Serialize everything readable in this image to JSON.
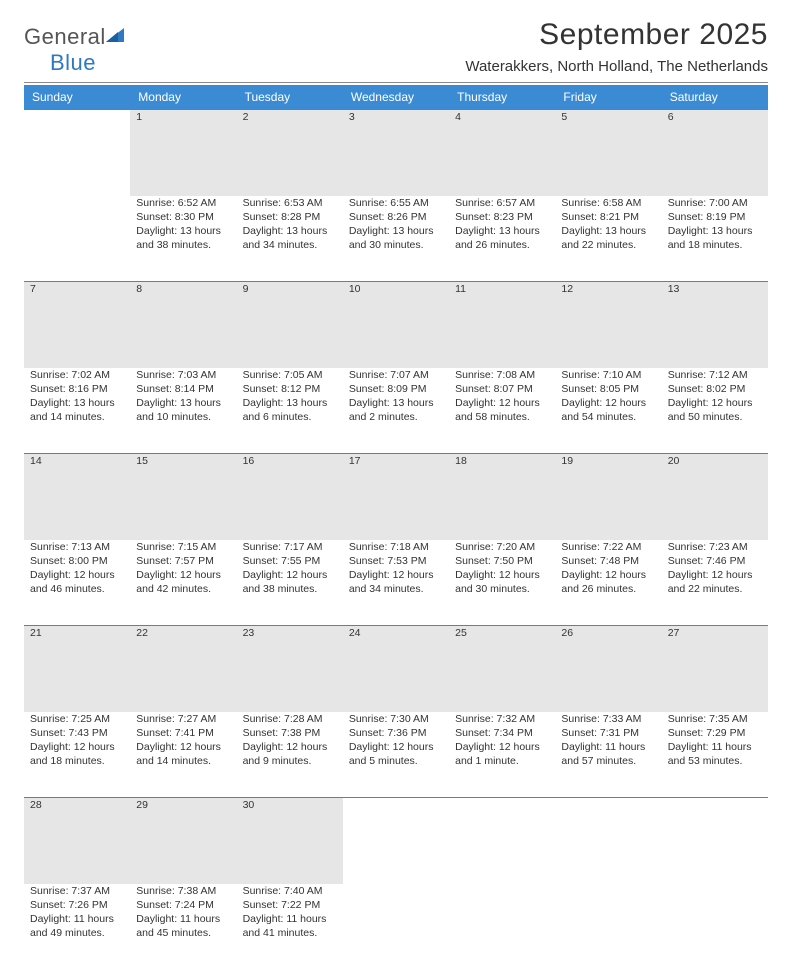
{
  "brand": {
    "word1": "General",
    "word2": "Blue",
    "word1_color": "#555555",
    "word2_color": "#2f78c4"
  },
  "title": "September 2025",
  "location": "Waterakkers, North Holland, The Netherlands",
  "header_bg": "#3b8bd4",
  "daynum_bg": "#e6e6e6",
  "border_color": "#7a7a7a",
  "text_color": "#333333",
  "weekdays": [
    "Sunday",
    "Monday",
    "Tuesday",
    "Wednesday",
    "Thursday",
    "Friday",
    "Saturday"
  ],
  "weeks": [
    [
      null,
      {
        "n": "1",
        "sr": "6:52 AM",
        "ss": "8:30 PM",
        "dl": "13 hours and 38 minutes."
      },
      {
        "n": "2",
        "sr": "6:53 AM",
        "ss": "8:28 PM",
        "dl": "13 hours and 34 minutes."
      },
      {
        "n": "3",
        "sr": "6:55 AM",
        "ss": "8:26 PM",
        "dl": "13 hours and 30 minutes."
      },
      {
        "n": "4",
        "sr": "6:57 AM",
        "ss": "8:23 PM",
        "dl": "13 hours and 26 minutes."
      },
      {
        "n": "5",
        "sr": "6:58 AM",
        "ss": "8:21 PM",
        "dl": "13 hours and 22 minutes."
      },
      {
        "n": "6",
        "sr": "7:00 AM",
        "ss": "8:19 PM",
        "dl": "13 hours and 18 minutes."
      }
    ],
    [
      {
        "n": "7",
        "sr": "7:02 AM",
        "ss": "8:16 PM",
        "dl": "13 hours and 14 minutes."
      },
      {
        "n": "8",
        "sr": "7:03 AM",
        "ss": "8:14 PM",
        "dl": "13 hours and 10 minutes."
      },
      {
        "n": "9",
        "sr": "7:05 AM",
        "ss": "8:12 PM",
        "dl": "13 hours and 6 minutes."
      },
      {
        "n": "10",
        "sr": "7:07 AM",
        "ss": "8:09 PM",
        "dl": "13 hours and 2 minutes."
      },
      {
        "n": "11",
        "sr": "7:08 AM",
        "ss": "8:07 PM",
        "dl": "12 hours and 58 minutes."
      },
      {
        "n": "12",
        "sr": "7:10 AM",
        "ss": "8:05 PM",
        "dl": "12 hours and 54 minutes."
      },
      {
        "n": "13",
        "sr": "7:12 AM",
        "ss": "8:02 PM",
        "dl": "12 hours and 50 minutes."
      }
    ],
    [
      {
        "n": "14",
        "sr": "7:13 AM",
        "ss": "8:00 PM",
        "dl": "12 hours and 46 minutes."
      },
      {
        "n": "15",
        "sr": "7:15 AM",
        "ss": "7:57 PM",
        "dl": "12 hours and 42 minutes."
      },
      {
        "n": "16",
        "sr": "7:17 AM",
        "ss": "7:55 PM",
        "dl": "12 hours and 38 minutes."
      },
      {
        "n": "17",
        "sr": "7:18 AM",
        "ss": "7:53 PM",
        "dl": "12 hours and 34 minutes."
      },
      {
        "n": "18",
        "sr": "7:20 AM",
        "ss": "7:50 PM",
        "dl": "12 hours and 30 minutes."
      },
      {
        "n": "19",
        "sr": "7:22 AM",
        "ss": "7:48 PM",
        "dl": "12 hours and 26 minutes."
      },
      {
        "n": "20",
        "sr": "7:23 AM",
        "ss": "7:46 PM",
        "dl": "12 hours and 22 minutes."
      }
    ],
    [
      {
        "n": "21",
        "sr": "7:25 AM",
        "ss": "7:43 PM",
        "dl": "12 hours and 18 minutes."
      },
      {
        "n": "22",
        "sr": "7:27 AM",
        "ss": "7:41 PM",
        "dl": "12 hours and 14 minutes."
      },
      {
        "n": "23",
        "sr": "7:28 AM",
        "ss": "7:38 PM",
        "dl": "12 hours and 9 minutes."
      },
      {
        "n": "24",
        "sr": "7:30 AM",
        "ss": "7:36 PM",
        "dl": "12 hours and 5 minutes."
      },
      {
        "n": "25",
        "sr": "7:32 AM",
        "ss": "7:34 PM",
        "dl": "12 hours and 1 minute."
      },
      {
        "n": "26",
        "sr": "7:33 AM",
        "ss": "7:31 PM",
        "dl": "11 hours and 57 minutes."
      },
      {
        "n": "27",
        "sr": "7:35 AM",
        "ss": "7:29 PM",
        "dl": "11 hours and 53 minutes."
      }
    ],
    [
      {
        "n": "28",
        "sr": "7:37 AM",
        "ss": "7:26 PM",
        "dl": "11 hours and 49 minutes."
      },
      {
        "n": "29",
        "sr": "7:38 AM",
        "ss": "7:24 PM",
        "dl": "11 hours and 45 minutes."
      },
      {
        "n": "30",
        "sr": "7:40 AM",
        "ss": "7:22 PM",
        "dl": "11 hours and 41 minutes."
      },
      null,
      null,
      null,
      null
    ]
  ],
  "labels": {
    "sunrise": "Sunrise:",
    "sunset": "Sunset:",
    "daylight": "Daylight:"
  }
}
